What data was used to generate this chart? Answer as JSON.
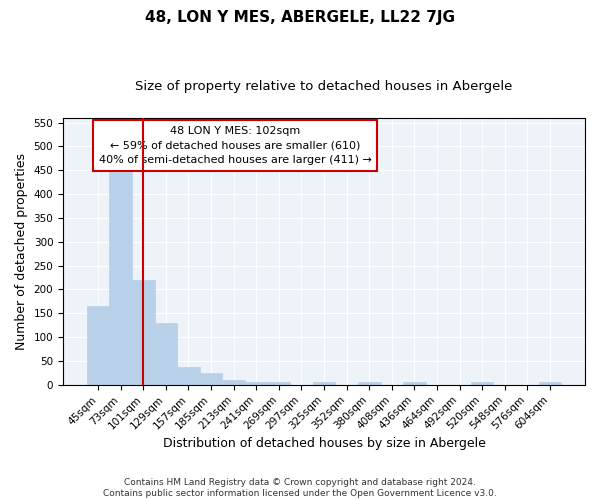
{
  "title": "48, LON Y MES, ABERGELE, LL22 7JG",
  "subtitle": "Size of property relative to detached houses in Abergele",
  "xlabel": "Distribution of detached houses by size in Abergele",
  "ylabel": "Number of detached properties",
  "categories": [
    "45sqm",
    "73sqm",
    "101sqm",
    "129sqm",
    "157sqm",
    "185sqm",
    "213sqm",
    "241sqm",
    "269sqm",
    "297sqm",
    "325sqm",
    "352sqm",
    "380sqm",
    "408sqm",
    "436sqm",
    "464sqm",
    "492sqm",
    "520sqm",
    "548sqm",
    "576sqm",
    "604sqm"
  ],
  "values": [
    165,
    447,
    220,
    130,
    37,
    25,
    10,
    5,
    5,
    0,
    5,
    0,
    5,
    0,
    5,
    0,
    0,
    5,
    0,
    0,
    5
  ],
  "bar_color": "#b8d0e8",
  "bar_edge_color": "#b8d0e8",
  "vline_x": 2,
  "vline_color": "#cc0000",
  "annotation_line1": "48 LON Y MES: 102sqm",
  "annotation_line2": "← 59% of detached houses are smaller (610)",
  "annotation_line3": "40% of semi-detached houses are larger (411) →",
  "annotation_box_color": "#ffffff",
  "annotation_box_edge": "#cc0000",
  "ylim": [
    0,
    560
  ],
  "yticks": [
    0,
    50,
    100,
    150,
    200,
    250,
    300,
    350,
    400,
    450,
    500,
    550
  ],
  "footer": "Contains HM Land Registry data © Crown copyright and database right 2024.\nContains public sector information licensed under the Open Government Licence v3.0.",
  "title_fontsize": 11,
  "subtitle_fontsize": 9.5,
  "tick_fontsize": 7.5,
  "label_fontsize": 9,
  "annotation_fontsize": 8,
  "background_color": "#ffffff",
  "plot_bg_color": "#eef3fa",
  "grid_color": "#ffffff"
}
